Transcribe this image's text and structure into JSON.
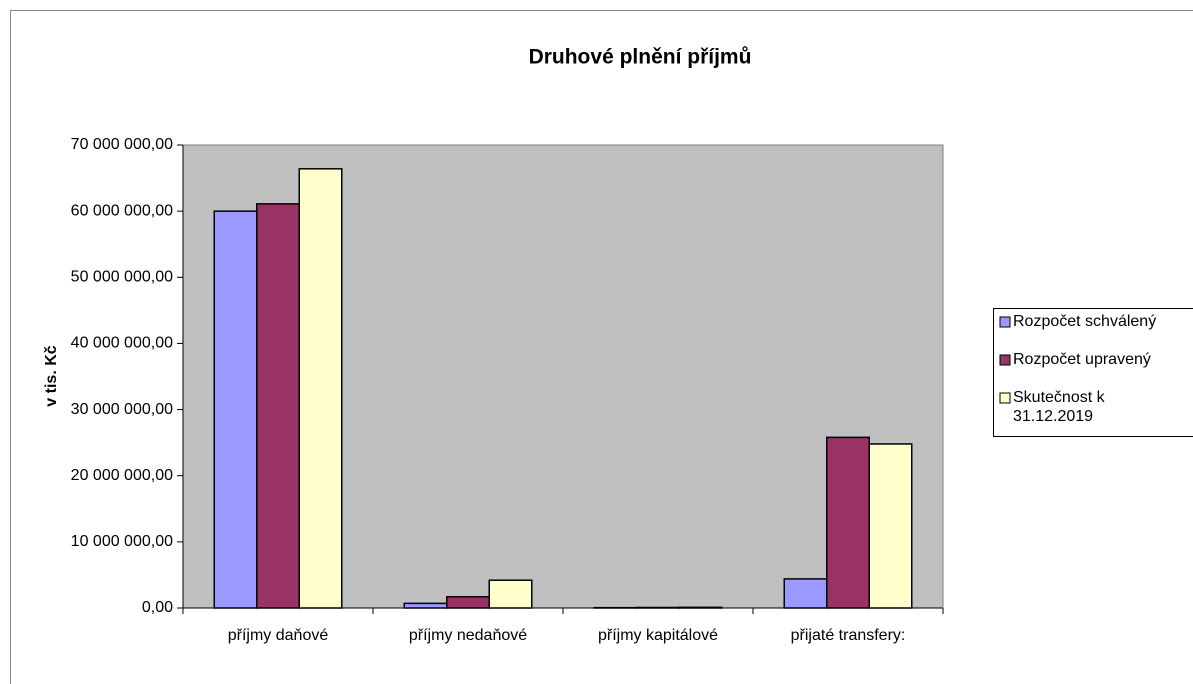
{
  "chart_data": {
    "type": "bar",
    "title": "Druhové plnění příjmů",
    "y_label": "v tis. Kč",
    "categories": [
      "příjmy daňové",
      "příjmy nedaňové",
      "příjmy kapitálové",
      "přijaté transfery:"
    ],
    "series": [
      {
        "name": "Rozpočet schválený",
        "color": "#9999ff",
        "values": [
          60000000,
          700000,
          50000,
          4400000
        ]
      },
      {
        "name": "Rozpočet upravený",
        "color": "#993366",
        "values": [
          61100000,
          1700000,
          80000,
          25800000
        ]
      },
      {
        "name": "Skutečnost k 31.12.2019",
        "color": "#ffffcc",
        "values": [
          66400000,
          4200000,
          100000,
          24800000
        ]
      }
    ],
    "ylim": [
      0,
      70000000
    ],
    "yticks": [
      {
        "value": 0,
        "label": "0,00"
      },
      {
        "value": 10000000,
        "label": "10 000 000,00"
      },
      {
        "value": 20000000,
        "label": "20 000 000,00"
      },
      {
        "value": 30000000,
        "label": "30 000 000,00"
      },
      {
        "value": 40000000,
        "label": "40 000 000,00"
      },
      {
        "value": 50000000,
        "label": "50 000 000,00"
      },
      {
        "value": 60000000,
        "label": "60 000 000,00"
      },
      {
        "value": 70000000,
        "label": "70 000 000,00"
      }
    ],
    "legend": "right"
  }
}
